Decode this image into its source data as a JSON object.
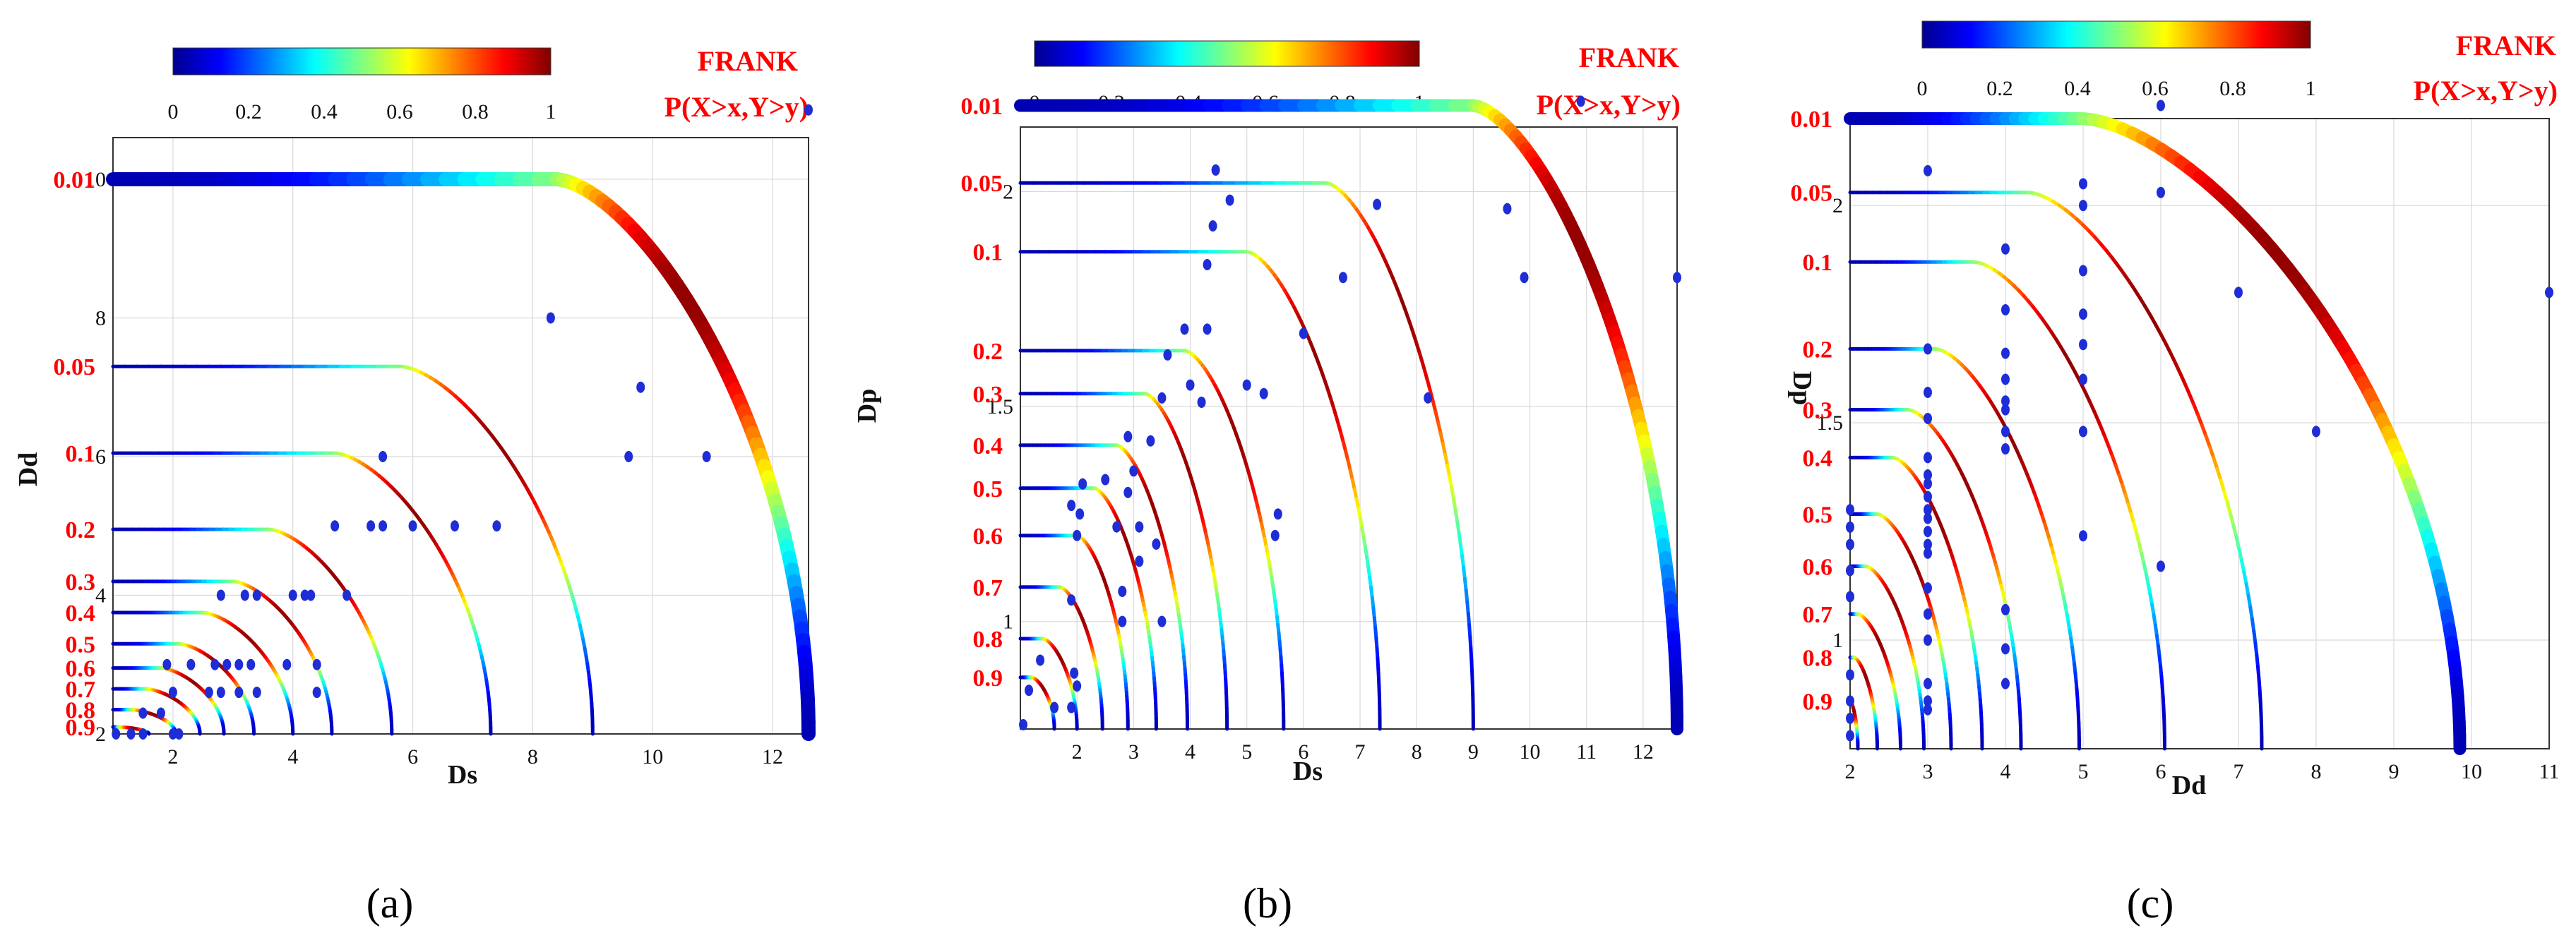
{
  "figure": {
    "colorbar_ticks": [
      "0",
      "0.2",
      "0.4",
      "0.6",
      "0.8",
      "1"
    ],
    "legend_title": "FRANK",
    "legend_subtitle": "P(X>x,Y>y)"
  },
  "chart_data": [
    {
      "type": "contour",
      "panel": "(a)",
      "title": "",
      "xlabel": "Ds",
      "ylabel": "Dd",
      "xlim": [
        1,
        12.6
      ],
      "ylim": [
        2,
        10.6
      ],
      "x_ticks": [
        "2",
        "4",
        "6",
        "8",
        "10",
        "12"
      ],
      "y_ticks": [
        "2",
        "4",
        "6",
        "8",
        "10"
      ],
      "colorbar_label": "P(X>x,Y>y)",
      "copula": "FRANK",
      "contours": [
        {
          "level": "0.01",
          "x_end": 12.6,
          "y_start": 10.0,
          "x_knee": 8.4
        },
        {
          "level": "0.05",
          "x_end": 9.0,
          "y_start": 7.3,
          "x_knee": 5.8
        },
        {
          "level": "0.1",
          "x_end": 7.3,
          "y_start": 6.05,
          "x_knee": 4.7
        },
        {
          "level": "0.2",
          "x_end": 5.65,
          "y_start": 4.95,
          "x_knee": 3.6
        },
        {
          "level": "0.3",
          "x_end": 4.65,
          "y_start": 4.2,
          "x_knee": 3.0
        },
        {
          "level": "0.4",
          "x_end": 4.0,
          "y_start": 3.75,
          "x_knee": 2.5
        },
        {
          "level": "0.5",
          "x_end": 3.35,
          "y_start": 3.3,
          "x_knee": 2.1
        },
        {
          "level": "0.6",
          "x_end": 2.85,
          "y_start": 2.95,
          "x_knee": 1.8
        },
        {
          "level": "0.7",
          "x_end": 2.45,
          "y_start": 2.65,
          "x_knee": 1.55
        },
        {
          "level": "0.8",
          "x_end": 2.05,
          "y_start": 2.35,
          "x_knee": 1.3
        },
        {
          "level": "0.9",
          "x_end": 1.6,
          "y_start": 2.1,
          "x_knee": 1.1
        }
      ],
      "points": [
        [
          1.05,
          2.0
        ],
        [
          1.3,
          2.0
        ],
        [
          1.5,
          2.0
        ],
        [
          2.0,
          2.0
        ],
        [
          2.1,
          2.0
        ],
        [
          1.5,
          2.3
        ],
        [
          1.8,
          2.3
        ],
        [
          2.0,
          2.6
        ],
        [
          2.6,
          2.6
        ],
        [
          2.8,
          2.6
        ],
        [
          3.1,
          2.6
        ],
        [
          3.4,
          2.6
        ],
        [
          4.4,
          2.6
        ],
        [
          1.9,
          3.0
        ],
        [
          2.3,
          3.0
        ],
        [
          2.7,
          3.0
        ],
        [
          2.9,
          3.0
        ],
        [
          3.1,
          3.0
        ],
        [
          3.3,
          3.0
        ],
        [
          3.9,
          3.0
        ],
        [
          4.4,
          3.0
        ],
        [
          2.8,
          4.0
        ],
        [
          3.2,
          4.0
        ],
        [
          3.4,
          4.0
        ],
        [
          4.0,
          4.0
        ],
        [
          4.2,
          4.0
        ],
        [
          4.3,
          4.0
        ],
        [
          4.9,
          4.0
        ],
        [
          4.7,
          5.0
        ],
        [
          5.3,
          5.0
        ],
        [
          5.5,
          5.0
        ],
        [
          6.0,
          5.0
        ],
        [
          6.7,
          5.0
        ],
        [
          7.4,
          5.0
        ],
        [
          5.5,
          6.0
        ],
        [
          9.6,
          6.0
        ],
        [
          10.9,
          6.0
        ],
        [
          9.8,
          7.0
        ],
        [
          8.3,
          8.0
        ],
        [
          12.6,
          11.0
        ]
      ]
    },
    {
      "type": "contour",
      "panel": "(b)",
      "title": "",
      "xlabel": "Ds",
      "ylabel": "Dp",
      "xlim": [
        1,
        12.6
      ],
      "ylim": [
        0.75,
        2.15
      ],
      "x_ticks": [
        "2",
        "3",
        "4",
        "5",
        "6",
        "7",
        "8",
        "9",
        "10",
        "11",
        "12"
      ],
      "y_ticks": [
        "1",
        "1.5",
        "2"
      ],
      "colorbar_label": "P(X>x,Y>y)",
      "copula": "FRANK",
      "contours": [
        {
          "level": "0.01",
          "x_end": 12.6,
          "y_start": 2.2,
          "x_knee": 9.0
        },
        {
          "level": "0.05",
          "x_end": 9.0,
          "y_start": 2.02,
          "x_knee": 6.4
        },
        {
          "level": "0.1",
          "x_end": 7.35,
          "y_start": 1.86,
          "x_knee": 5.0
        },
        {
          "level": "0.2",
          "x_end": 5.65,
          "y_start": 1.63,
          "x_knee": 3.9
        },
        {
          "level": "0.3",
          "x_end": 4.65,
          "y_start": 1.53,
          "x_knee": 3.2
        },
        {
          "level": "0.4",
          "x_end": 3.95,
          "y_start": 1.41,
          "x_knee": 2.7
        },
        {
          "level": "0.5",
          "x_end": 3.4,
          "y_start": 1.31,
          "x_knee": 2.3
        },
        {
          "level": "0.6",
          "x_end": 2.9,
          "y_start": 1.2,
          "x_knee": 2.0
        },
        {
          "level": "0.7",
          "x_end": 2.45,
          "y_start": 1.08,
          "x_knee": 1.7
        },
        {
          "level": "0.8",
          "x_end": 2.0,
          "y_start": 0.96,
          "x_knee": 1.4
        },
        {
          "level": "0.9",
          "x_end": 1.6,
          "y_start": 0.87,
          "x_knee": 1.2
        }
      ],
      "points": [
        [
          1.05,
          0.76
        ],
        [
          1.15,
          0.84
        ],
        [
          1.35,
          0.91
        ],
        [
          1.6,
          0.8
        ],
        [
          1.9,
          0.8
        ],
        [
          2.0,
          0.85
        ],
        [
          1.95,
          0.88
        ],
        [
          1.9,
          1.05
        ],
        [
          2.0,
          1.2
        ],
        [
          2.05,
          1.25
        ],
        [
          1.9,
          1.27
        ],
        [
          2.1,
          1.32
        ],
        [
          2.5,
          1.33
        ],
        [
          2.8,
          1.0
        ],
        [
          2.7,
          1.22
        ],
        [
          2.9,
          1.3
        ],
        [
          3.1,
          1.22
        ],
        [
          3.0,
          1.35
        ],
        [
          2.9,
          1.43
        ],
        [
          3.3,
          1.42
        ],
        [
          3.5,
          1.52
        ],
        [
          3.6,
          1.62
        ],
        [
          3.4,
          1.18
        ],
        [
          3.5,
          1.0
        ],
        [
          3.1,
          1.14
        ],
        [
          2.8,
          1.07
        ],
        [
          3.9,
          1.68
        ],
        [
          4.0,
          1.55
        ],
        [
          4.2,
          1.51
        ],
        [
          4.3,
          1.68
        ],
        [
          4.3,
          1.83
        ],
        [
          4.4,
          1.92
        ],
        [
          4.45,
          2.05
        ],
        [
          4.7,
          1.98
        ],
        [
          5.0,
          1.55
        ],
        [
          5.3,
          1.53
        ],
        [
          5.5,
          1.2
        ],
        [
          5.55,
          1.25
        ],
        [
          6.0,
          1.67
        ],
        [
          6.7,
          1.8
        ],
        [
          7.3,
          1.97
        ],
        [
          8.2,
          1.52
        ],
        [
          9.6,
          1.96
        ],
        [
          9.9,
          1.8
        ],
        [
          10.9,
          2.21
        ],
        [
          12.6,
          1.8
        ]
      ]
    },
    {
      "type": "contour",
      "panel": "(c)",
      "title": "",
      "xlabel": "Dd",
      "ylabel": "Dp",
      "xlim": [
        2,
        11
      ],
      "ylim": [
        0.75,
        2.2
      ],
      "x_ticks": [
        "2",
        "3",
        "4",
        "5",
        "6",
        "7",
        "8",
        "9",
        "10",
        "11"
      ],
      "y_ticks": [
        "1",
        "1.5",
        "2"
      ],
      "colorbar_label": "P(X>x,Y>y)",
      "copula": "FRANK",
      "contours": [
        {
          "level": "0.01",
          "x_end": 9.85,
          "y_start": 2.2,
          "x_knee": 5.0
        },
        {
          "level": "0.05",
          "x_end": 7.3,
          "y_start": 2.03,
          "x_knee": 4.3
        },
        {
          "level": "0.1",
          "x_end": 6.05,
          "y_start": 1.87,
          "x_knee": 3.6
        },
        {
          "level": "0.2",
          "x_end": 4.95,
          "y_start": 1.67,
          "x_knee": 3.1
        },
        {
          "level": "0.3",
          "x_end": 4.2,
          "y_start": 1.53,
          "x_knee": 2.75
        },
        {
          "level": "0.4",
          "x_end": 3.7,
          "y_start": 1.42,
          "x_knee": 2.55
        },
        {
          "level": "0.5",
          "x_end": 3.3,
          "y_start": 1.29,
          "x_knee": 2.35
        },
        {
          "level": "0.6",
          "x_end": 2.95,
          "y_start": 1.17,
          "x_knee": 2.2
        },
        {
          "level": "0.7",
          "x_end": 2.65,
          "y_start": 1.06,
          "x_knee": 2.1
        },
        {
          "level": "0.8",
          "x_end": 2.35,
          "y_start": 0.96,
          "x_knee": 2.05
        },
        {
          "level": "0.9",
          "x_end": 2.1,
          "y_start": 0.86,
          "x_knee": 2.0
        }
      ],
      "points": [
        [
          2,
          0.78
        ],
        [
          2,
          0.82
        ],
        [
          2,
          0.86
        ],
        [
          2,
          0.92
        ],
        [
          2,
          1.1
        ],
        [
          2,
          1.16
        ],
        [
          2,
          1.22
        ],
        [
          2,
          1.26
        ],
        [
          2,
          1.3
        ],
        [
          3,
          0.84
        ],
        [
          3,
          0.86
        ],
        [
          3,
          0.9
        ],
        [
          3,
          1.0
        ],
        [
          3,
          1.06
        ],
        [
          3,
          1.12
        ],
        [
          3,
          1.2
        ],
        [
          3,
          1.22
        ],
        [
          3,
          1.25
        ],
        [
          3,
          1.28
        ],
        [
          3,
          1.3
        ],
        [
          3,
          1.33
        ],
        [
          3,
          1.36
        ],
        [
          3,
          1.38
        ],
        [
          3,
          1.42
        ],
        [
          3,
          1.51
        ],
        [
          3,
          1.57
        ],
        [
          3,
          1.67
        ],
        [
          3,
          2.08
        ],
        [
          4,
          0.9
        ],
        [
          4,
          0.98
        ],
        [
          4,
          1.07
        ],
        [
          4,
          1.44
        ],
        [
          4,
          1.48
        ],
        [
          4,
          1.53
        ],
        [
          4,
          1.55
        ],
        [
          4,
          1.6
        ],
        [
          4,
          1.66
        ],
        [
          4,
          1.76
        ],
        [
          4,
          1.9
        ],
        [
          5,
          1.24
        ],
        [
          5,
          1.48
        ],
        [
          5,
          1.6
        ],
        [
          5,
          1.68
        ],
        [
          5,
          1.75
        ],
        [
          5,
          1.85
        ],
        [
          5,
          2.0
        ],
        [
          5,
          2.05
        ],
        [
          6,
          1.17
        ],
        [
          6,
          2.03
        ],
        [
          6,
          2.23
        ],
        [
          7,
          1.8
        ],
        [
          8,
          1.48
        ],
        [
          11,
          1.8
        ]
      ]
    }
  ],
  "captions": [
    "(a)",
    "(b)",
    "(c)"
  ]
}
